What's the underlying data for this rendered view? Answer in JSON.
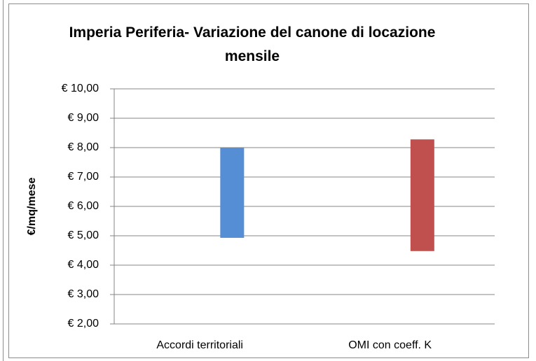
{
  "chart_data": {
    "type": "floating-bar",
    "title": "Imperia Periferia- Variazione del canone di locazione mensile",
    "y_label": "€/mq/mese",
    "categories": [
      "Accordi territoriali",
      "OMI con coeff. K"
    ],
    "low": [
      4.93,
      4.48
    ],
    "high": [
      8.0,
      8.28
    ],
    "colors": [
      "#558ed5",
      "#c0504d"
    ],
    "ylim": [
      2,
      10
    ],
    "yticks": [
      {
        "value": 2,
        "label": "€ 2,00"
      },
      {
        "value": 3,
        "label": "€ 3,00"
      },
      {
        "value": 4,
        "label": "€ 4,00"
      },
      {
        "value": 5,
        "label": "€ 5,00"
      },
      {
        "value": 6,
        "label": "€ 6,00"
      },
      {
        "value": 7,
        "label": "€ 7,00"
      },
      {
        "value": 8,
        "label": "€ 8,00"
      },
      {
        "value": 9,
        "label": "€ 9,00"
      },
      {
        "value": 10,
        "label": "€ 10,00"
      }
    ],
    "grid": true
  }
}
